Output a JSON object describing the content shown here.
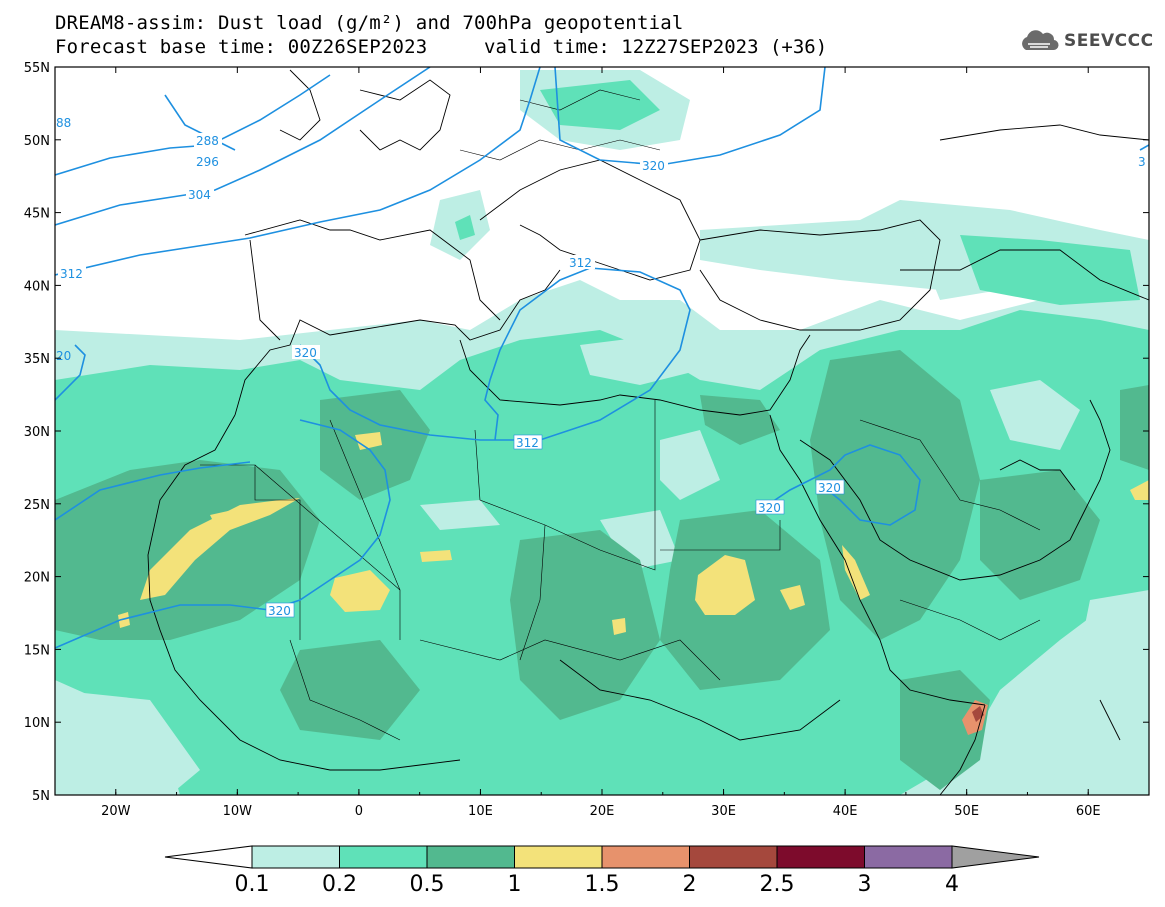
{
  "header": {
    "title_line1": "DREAM8-assim: Dust load (g/m²) and 700hPa geopotential",
    "title_line2": "Forecast base time: 00Z26SEP2023",
    "valid_time": "valid time: 12Z27SEP2023 (+36)"
  },
  "logo": {
    "text": "SEEVCCC",
    "icon": "cloud-icon"
  },
  "axes": {
    "lat_labels": [
      "55N",
      "50N",
      "45N",
      "40N",
      "35N",
      "30N",
      "25N",
      "20N",
      "15N",
      "10N",
      "5N"
    ],
    "lon_labels": [
      "20W",
      "10W",
      "0",
      "10E",
      "20E",
      "30E",
      "40E",
      "50E",
      "60E"
    ]
  },
  "contours": {
    "color": "#1e90e0",
    "labels": [
      "288",
      "296",
      "304",
      "312",
      "320",
      "312",
      "312",
      "320",
      "320",
      "320",
      "320",
      "20",
      "88",
      "3"
    ]
  },
  "colorbar": {
    "levels": [
      "0.1",
      "0.2",
      "0.5",
      "1",
      "1.5",
      "2",
      "2.5",
      "3",
      "4"
    ],
    "colors": [
      "#ffffff",
      "#bdeee4",
      "#5fe1b8",
      "#52b98f",
      "#f3e27a",
      "#e7926c",
      "#a5483d",
      "#7d0b2c",
      "#8b6aa3",
      "#a0a0a0"
    ]
  },
  "palette": {
    "c1": "#bdeee4",
    "c2": "#5fe1b8",
    "c3": "#52b98f",
    "c4": "#f3e27a",
    "c5": "#e7926c",
    "c6": "#a5483d"
  }
}
